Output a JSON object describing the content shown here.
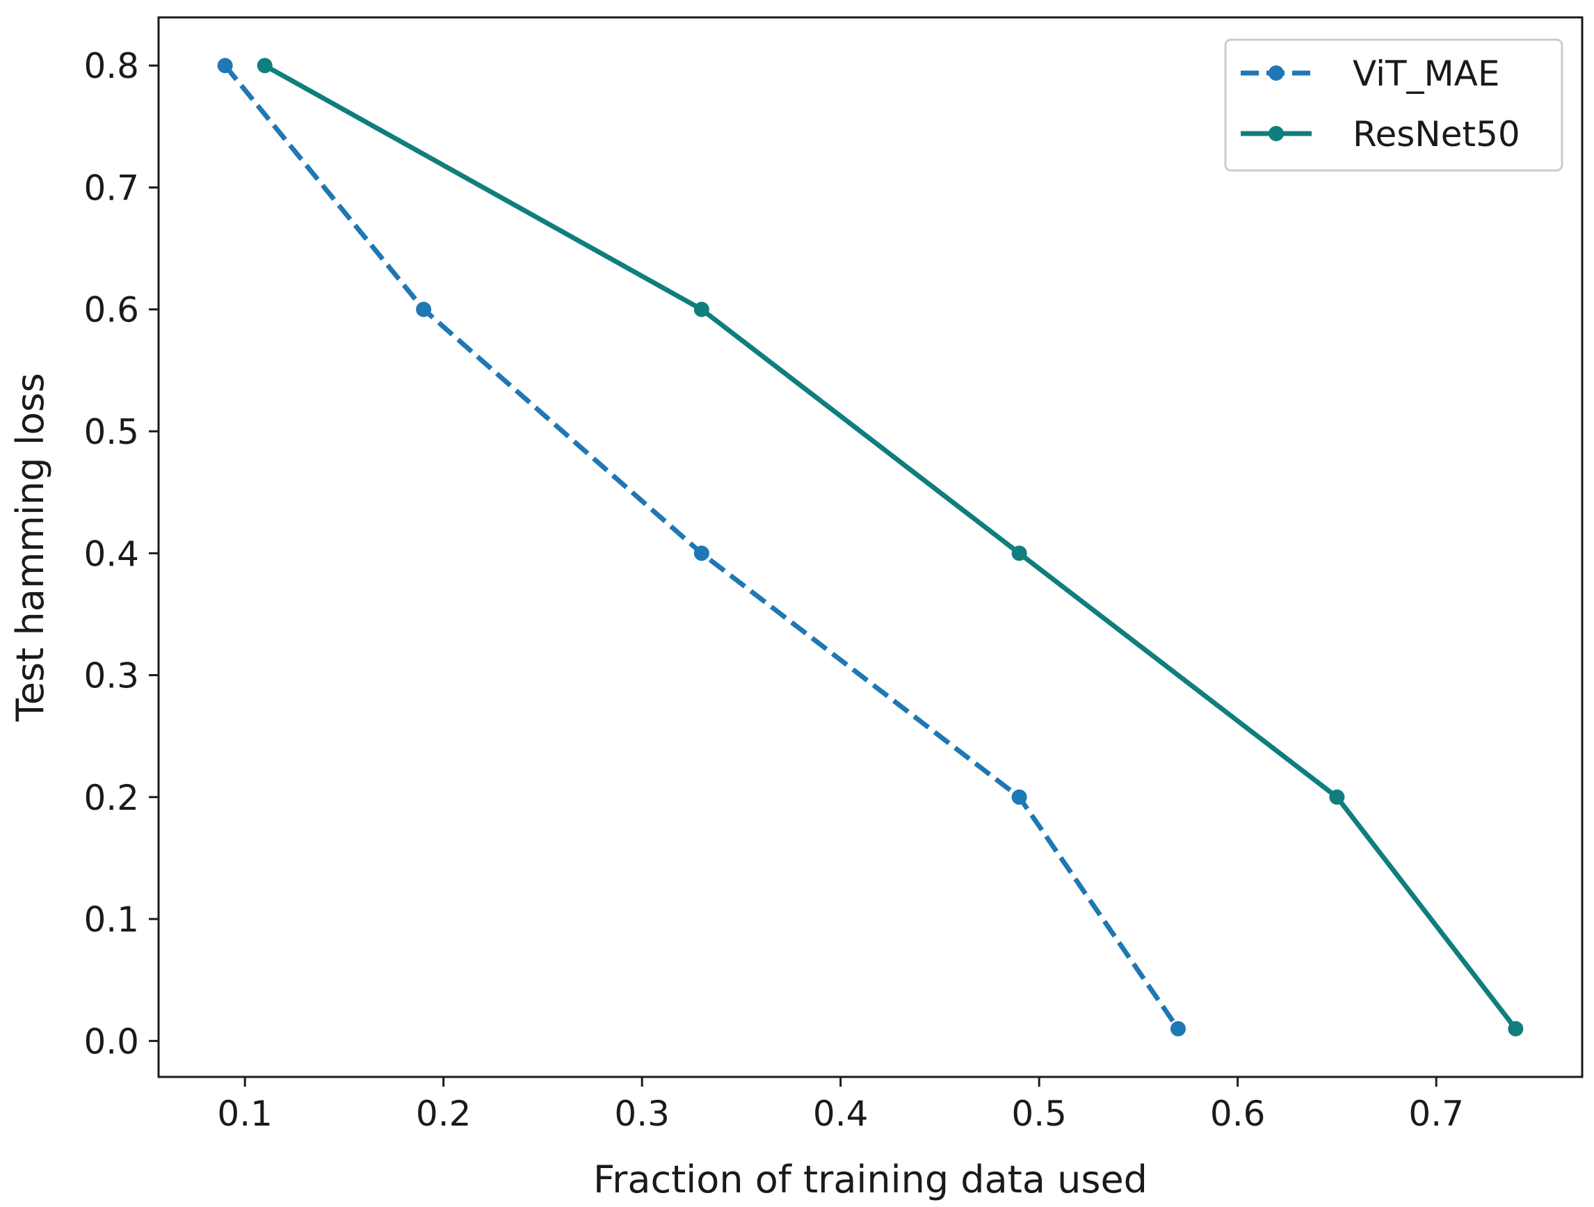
{
  "chart_data": {
    "type": "line",
    "title": "",
    "xlabel": "Fraction of training data used",
    "ylabel": "Test hamming loss",
    "xlim": [
      0.0565,
      0.7735
    ],
    "ylim": [
      -0.0295,
      0.8395
    ],
    "xticks": [
      0.1,
      0.2,
      0.3,
      0.4,
      0.5,
      0.6,
      0.7
    ],
    "xtick_labels": [
      "0.1",
      "0.2",
      "0.3",
      "0.4",
      "0.5",
      "0.6",
      "0.7"
    ],
    "yticks": [
      0.0,
      0.1,
      0.2,
      0.3,
      0.4,
      0.5,
      0.6,
      0.7,
      0.8
    ],
    "ytick_labels": [
      "0.0",
      "0.1",
      "0.2",
      "0.3",
      "0.4",
      "0.5",
      "0.6",
      "0.7",
      "0.8"
    ],
    "grid": false,
    "legend_position": "top-right",
    "series": [
      {
        "name": "ViT_MAE",
        "color": "#1f77b4",
        "linestyle": "dashed",
        "marker": "circle",
        "x": [
          0.09,
          0.19,
          0.33,
          0.49,
          0.57
        ],
        "y": [
          0.8,
          0.6,
          0.4,
          0.2,
          0.01
        ]
      },
      {
        "name": "ResNet50",
        "color": "#107e7d",
        "linestyle": "solid",
        "marker": "circle",
        "x": [
          0.11,
          0.33,
          0.49,
          0.65,
          0.74
        ],
        "y": [
          0.8,
          0.6,
          0.4,
          0.2,
          0.01
        ]
      }
    ]
  }
}
